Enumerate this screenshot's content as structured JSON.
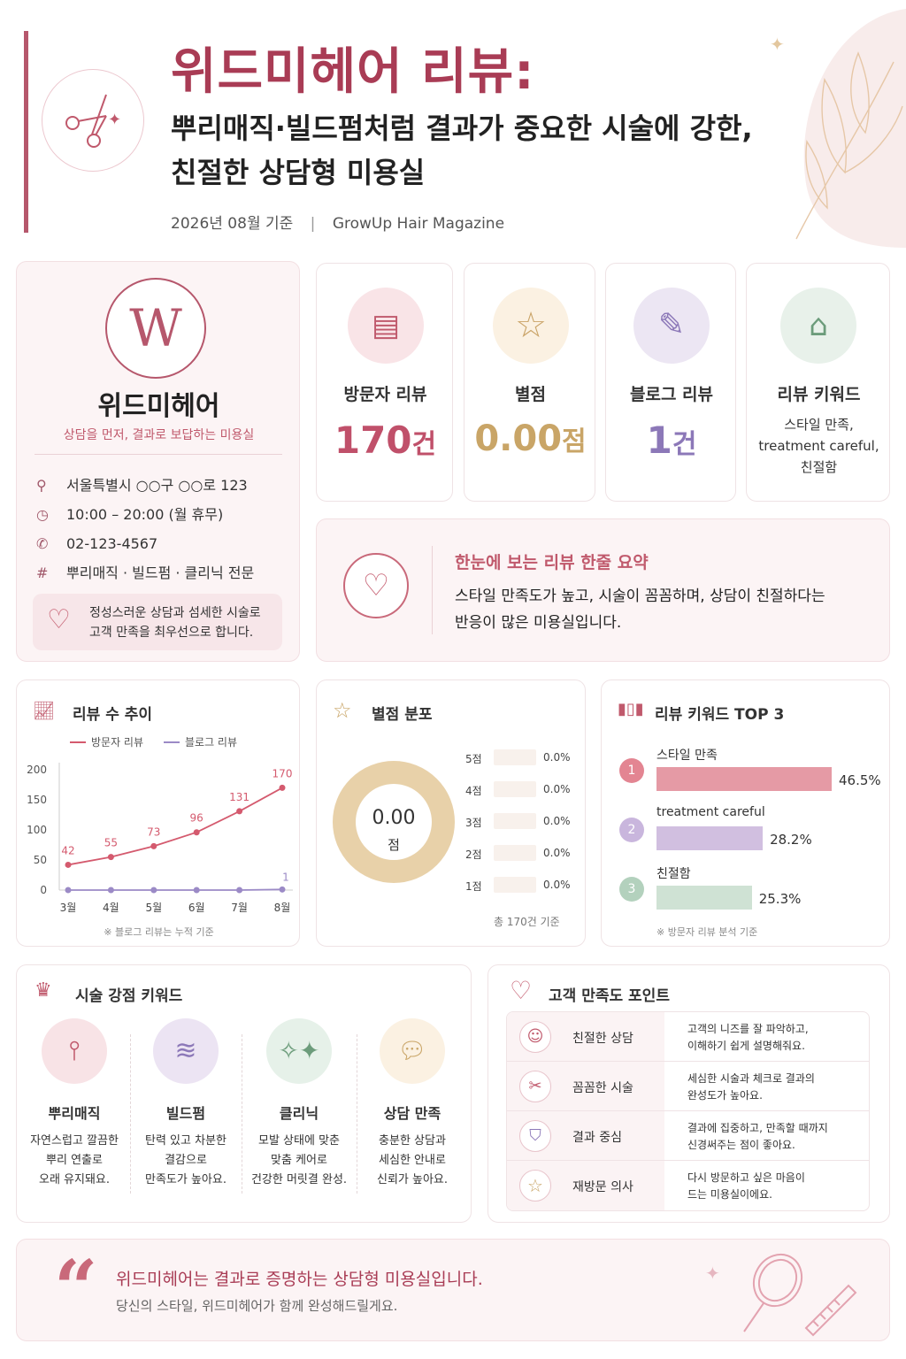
{
  "header": {
    "title": "위드미헤어 리뷰:",
    "subtitle_line1": "뿌리매직·빌드펌처럼 결과가 중요한 시술에 강한,",
    "subtitle_line2": "친절한 상담형 미용실",
    "date": "2026년 08월 기준",
    "separator": "|",
    "publisher": "GrowUp Hair Magazine"
  },
  "profile": {
    "logo_letter": "W",
    "name": "위드미헤어",
    "tagline": "상담을 먼저, 결과로 보답하는 미용실",
    "address": "서울특별시 ○○구 ○○로 123",
    "hours": "10:00 – 20:00 (월 휴무)",
    "phone": "02-123-4567",
    "specialty": "뿌리매직 · 빌드펌 · 클리닉 전문",
    "promise_line1": "정성스러운 상담과 섬세한 시술로",
    "promise_line2": "고객 만족을 최우선으로 합니다."
  },
  "stats": [
    {
      "label": "방문자 리뷰",
      "value": "170",
      "unit": "건",
      "color": "#c0506a"
    },
    {
      "label": "별점",
      "value": "0.00",
      "unit": "점",
      "color": "#c9a567"
    },
    {
      "label": "블로그 리뷰",
      "value": "1",
      "unit": "건",
      "color": "#8c78b8"
    },
    {
      "label": "리뷰 키워드",
      "line1": "스타일 만족,",
      "line2": "treatment careful,",
      "line3": "친절함"
    }
  ],
  "summary": {
    "title": "한눈에 보는 리뷰 한줄 요약",
    "line1": "스타일 만족도가 높고, 시술이 꼼꼼하며, 상담이 친절하다는",
    "line2": "반응이 많은 미용실입니다."
  },
  "trend": {
    "title": "리뷰 수 추이",
    "note": "※ 블로그 리뷰는 누적 기준"
  },
  "chart_data": [
    {
      "type": "line",
      "categories": [
        "3월",
        "4월",
        "5월",
        "6월",
        "7월",
        "8월"
      ],
      "series": [
        {
          "name": "방문자 리뷰",
          "values": [
            42,
            55,
            73,
            96,
            131,
            170
          ],
          "color": "#d45a6e"
        },
        {
          "name": "블로그 리뷰",
          "values": [
            0,
            0,
            0,
            0,
            0,
            1
          ],
          "color": "#9b8ac6"
        }
      ],
      "y_ticks": [
        0,
        50,
        100,
        150,
        200
      ],
      "ylim": [
        0,
        200
      ],
      "data_labels": [
        "42",
        "55",
        "73",
        "96",
        "131",
        "170",
        "1"
      ],
      "legend": "top-left"
    },
    {
      "type": "pie",
      "title": "별점 분포",
      "center_value": "0.00",
      "center_unit": "점",
      "categories": [
        "5점",
        "4점",
        "3점",
        "2점",
        "1점"
      ],
      "values": [
        0,
        0,
        0,
        0,
        0
      ],
      "value_labels": [
        "0.0%",
        "0.0%",
        "0.0%",
        "0.0%",
        "0.0%"
      ],
      "total_note": "총 170건 기준"
    },
    {
      "type": "bar",
      "title": "리뷰 키워드 TOP 3",
      "categories": [
        "스타일 만족",
        "treatment careful",
        "친절함"
      ],
      "ranks": [
        "1",
        "2",
        "3"
      ],
      "values": [
        46.5,
        28.2,
        25.3
      ],
      "value_labels": [
        "46.5%",
        "28.2%",
        "25.3%"
      ],
      "colors": [
        "#e59aa5",
        "#d1bfe0",
        "#cfe2d4"
      ],
      "note": "※ 방문자 리뷰 분석 기준"
    }
  ],
  "strengths": {
    "title": "시술 강점 키워드",
    "items": [
      {
        "name": "뿌리매직",
        "l1": "자연스럽고 깔끔한",
        "l2": "뿌리 연출로",
        "l3": "오래 유지돼요."
      },
      {
        "name": "빌드펌",
        "l1": "탄력 있고 차분한",
        "l2": "결감으로",
        "l3": "만족도가 높아요."
      },
      {
        "name": "클리닉",
        "l1": "모발 상태에 맞춘",
        "l2": "맞춤 케어로",
        "l3": "건강한 머릿결 완성."
      },
      {
        "name": "상담 만족",
        "l1": "충분한 상담과",
        "l2": "세심한 안내로",
        "l3": "신뢰가 높아요."
      }
    ]
  },
  "satisfaction": {
    "title": "고객 만족도 포인트",
    "rows": [
      {
        "label": "친절한 상담",
        "d1": "고객의 니즈를 잘 파악하고,",
        "d2": "이해하기 쉽게 설명해줘요."
      },
      {
        "label": "꼼꼼한 시술",
        "d1": "세심한 시술과 체크로 결과의",
        "d2": "완성도가 높아요."
      },
      {
        "label": "결과 중심",
        "d1": "결과에 집중하고, 만족할 때까지",
        "d2": "신경써주는 점이 좋아요."
      },
      {
        "label": "재방문 의사",
        "d1": "다시 방문하고 싶은 마음이",
        "d2": "드는 미용실이에요."
      }
    ]
  },
  "footer": {
    "quote_mark": "“",
    "line1": "위드미헤어는 결과로 증명하는 상담형 미용실입니다.",
    "line2": "당신의 스타일, 위드미헤어가 함께 완성해드릴게요."
  }
}
